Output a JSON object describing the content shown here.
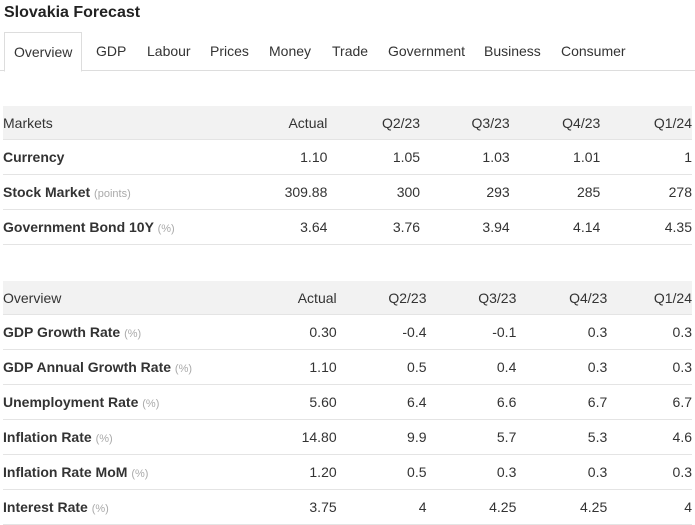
{
  "page": {
    "title": "Slovakia Forecast"
  },
  "tabs": [
    "Overview",
    "GDP",
    "Labour",
    "Prices",
    "Money",
    "Trade",
    "Government",
    "Business",
    "Consumer"
  ],
  "markets": {
    "header": [
      "Markets",
      "Actual",
      "Q2/23",
      "Q3/23",
      "Q4/23",
      "Q1/24"
    ],
    "rows": [
      {
        "name": "Currency",
        "unit": "",
        "values": [
          "1.10",
          "1.05",
          "1.03",
          "1.01",
          "1"
        ]
      },
      {
        "name": "Stock Market",
        "unit": "(points)",
        "values": [
          "309.88",
          "300",
          "293",
          "285",
          "278"
        ]
      },
      {
        "name": "Government Bond 10Y",
        "unit": "(%)",
        "values": [
          "3.64",
          "3.76",
          "3.94",
          "4.14",
          "4.35"
        ]
      }
    ]
  },
  "overview": {
    "header": [
      "Overview",
      "Actual",
      "Q2/23",
      "Q3/23",
      "Q4/23",
      "Q1/24"
    ],
    "rows": [
      {
        "name": "GDP Growth Rate",
        "unit": "(%)",
        "values": [
          "0.30",
          "-0.4",
          "-0.1",
          "0.3",
          "0.3"
        ]
      },
      {
        "name": "GDP Annual Growth Rate",
        "unit": "(%)",
        "values": [
          "1.10",
          "0.5",
          "0.4",
          "0.3",
          "0.3"
        ]
      },
      {
        "name": "Unemployment Rate",
        "unit": "(%)",
        "values": [
          "5.60",
          "6.4",
          "6.6",
          "6.7",
          "6.7"
        ]
      },
      {
        "name": "Inflation Rate",
        "unit": "(%)",
        "values": [
          "14.80",
          "9.9",
          "5.7",
          "5.3",
          "4.6"
        ]
      },
      {
        "name": "Inflation Rate MoM",
        "unit": "(%)",
        "values": [
          "1.20",
          "0.5",
          "0.3",
          "0.3",
          "0.3"
        ]
      },
      {
        "name": "Interest Rate",
        "unit": "(%)",
        "values": [
          "3.75",
          "4",
          "4.25",
          "4.25",
          "4"
        ]
      }
    ]
  },
  "colors": {
    "negative": "#b3261e",
    "header_bg": "#f2f2f2",
    "border": "#e4e4e4"
  }
}
